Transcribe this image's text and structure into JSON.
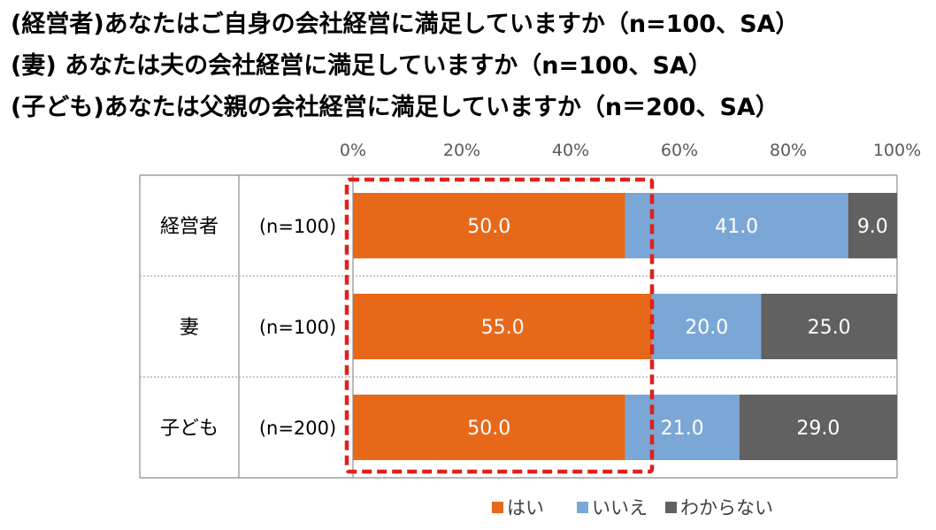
{
  "titles": [
    "(経営者)あなたはご自身の会社経営に満足していますか（n=100、SA）",
    "(妻) あなたは夫の会社経営に満足していますか（n=100、SA）",
    "(子ども)あなたは父親の会社経営に満足していますか（n＝200、SA）"
  ],
  "chart_data": {
    "type": "bar",
    "orientation": "horizontal",
    "stacked": true,
    "categories": [
      "経営者",
      "妻",
      "子ども"
    ],
    "sample_sizes": [
      "(n=100)",
      "(n=100)",
      "(n=200)"
    ],
    "series": [
      {
        "name": "はい",
        "values": [
          50.0,
          55.0,
          50.0
        ],
        "color": "#E8681A"
      },
      {
        "name": "いいえ",
        "values": [
          41.0,
          20.0,
          21.0
        ],
        "color": "#7BA7D6"
      },
      {
        "name": "わからない",
        "values": [
          9.0,
          25.0,
          29.0
        ],
        "color": "#616161"
      }
    ],
    "data_labels": [
      [
        "50.0",
        "41.0",
        "9.0"
      ],
      [
        "55.0",
        "20.0",
        "25.0"
      ],
      [
        "50.0",
        "21.0",
        "29.0"
      ]
    ],
    "xlim": [
      0,
      100
    ],
    "xticks": [
      0,
      20,
      40,
      60,
      80,
      100
    ],
    "xtick_labels": [
      "0%",
      "20%",
      "40%",
      "60%",
      "80%",
      "100%"
    ],
    "axis_position": "top",
    "legend_position": "bottom",
    "highlight": "red dashed box around the はい series",
    "colors": {
      "highlight": "#E0201B",
      "table_border": "#8C8C8C",
      "row_separator": "#A6A6A6"
    }
  }
}
